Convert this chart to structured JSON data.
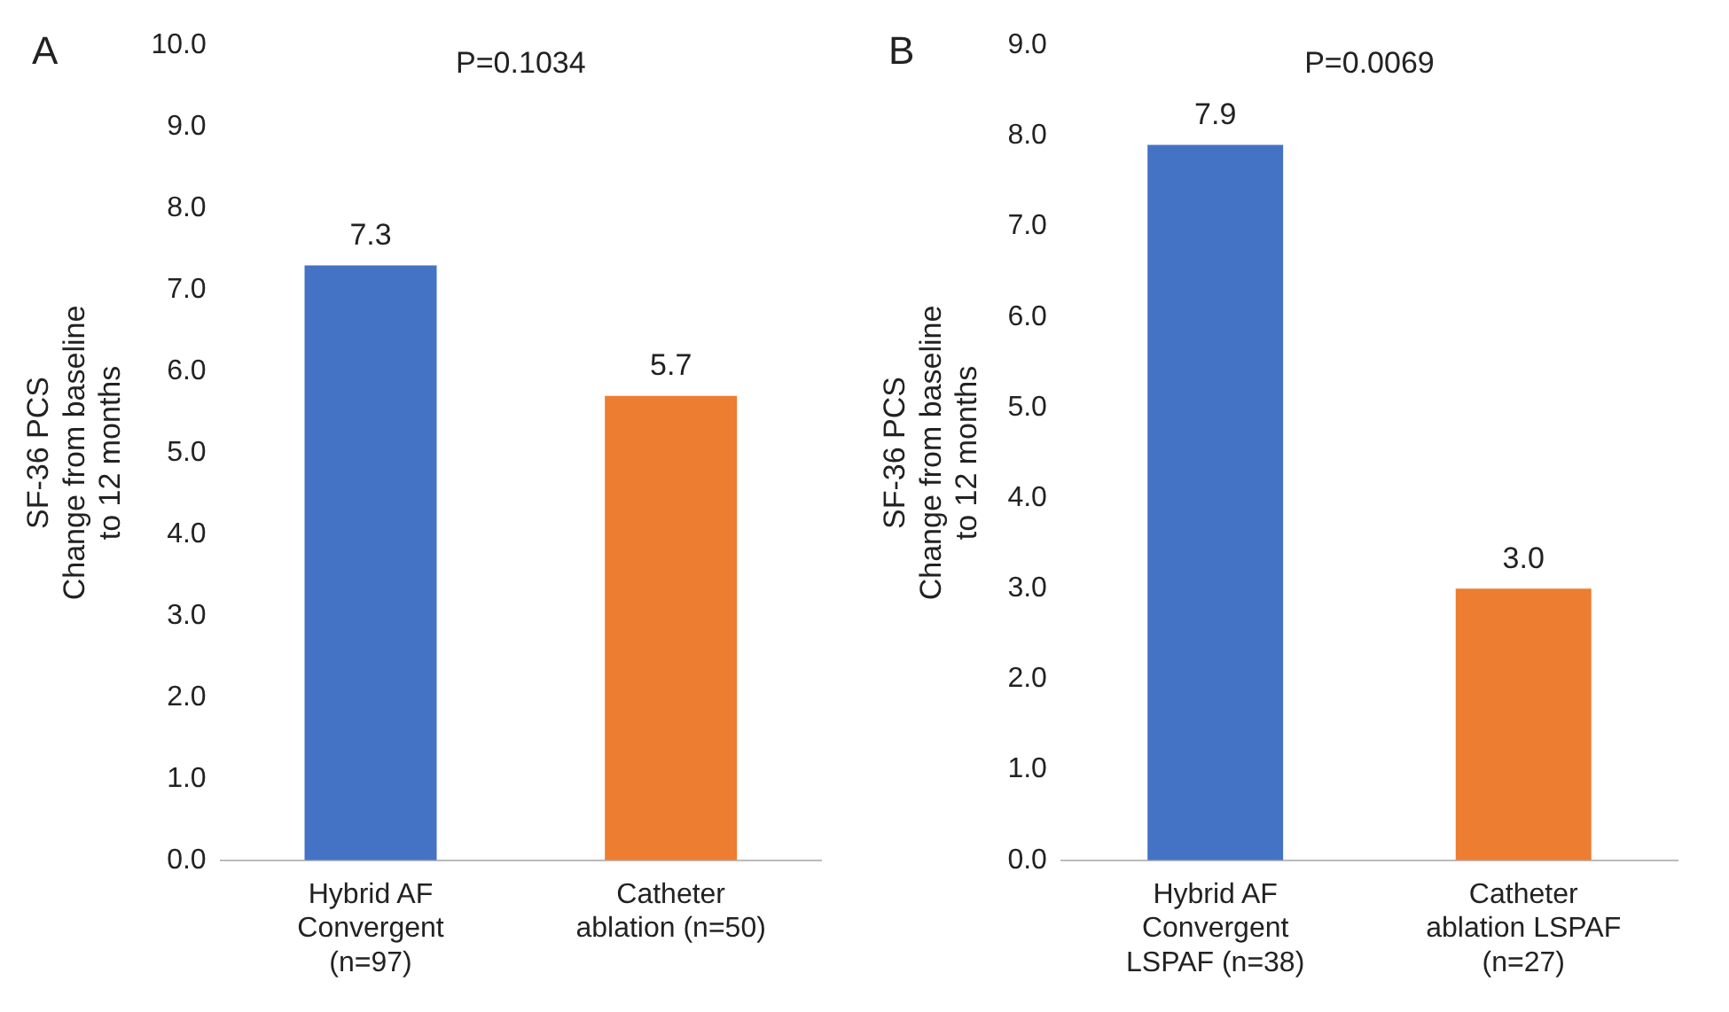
{
  "chart_data": [
    {
      "type": "bar",
      "title": "A",
      "ylabel": "SF-36 PCS\nChange from baseline\nto 12 months",
      "categories": [
        "Hybrid AF Convergent (n=97)",
        "Catheter ablation (n=50)"
      ],
      "values": [
        7.3,
        5.7
      ],
      "colors": [
        "#4472c4",
        "#ed7d31"
      ],
      "value_labels": [
        "7.3",
        "5.7"
      ],
      "ylim": [
        0,
        10
      ],
      "yticks": [
        {
          "value": 0,
          "label": "0.0"
        },
        {
          "value": 1,
          "label": "1.0"
        },
        {
          "value": 2,
          "label": "2.0"
        },
        {
          "value": 3,
          "label": "3.0"
        },
        {
          "value": 4,
          "label": "4.0"
        },
        {
          "value": 5,
          "label": "5.0"
        },
        {
          "value": 6,
          "label": "6.0"
        },
        {
          "value": 7,
          "label": "7.0"
        },
        {
          "value": 8,
          "label": "8.0"
        },
        {
          "value": 9,
          "label": "9.0"
        },
        {
          "value": 10,
          "label": "10.0"
        }
      ],
      "annotations": [
        "P=0.1034"
      ],
      "grid": false,
      "legend": false
    },
    {
      "type": "bar",
      "title": "B",
      "ylabel": "SF-36 PCS\nChange from baseline\nto 12 months",
      "categories": [
        "Hybrid AF Convergent LSPAF (n=38)",
        "Catheter ablation LSPAF (n=27)"
      ],
      "values": [
        7.9,
        3.0
      ],
      "colors": [
        "#4472c4",
        "#ed7d31"
      ],
      "value_labels": [
        "7.9",
        "3.0"
      ],
      "ylim": [
        0,
        9
      ],
      "yticks": [
        {
          "value": 0,
          "label": "0.0"
        },
        {
          "value": 1,
          "label": "1.0"
        },
        {
          "value": 2,
          "label": "2.0"
        },
        {
          "value": 3,
          "label": "3.0"
        },
        {
          "value": 4,
          "label": "4.0"
        },
        {
          "value": 5,
          "label": "5.0"
        },
        {
          "value": 6,
          "label": "6.0"
        },
        {
          "value": 7,
          "label": "7.0"
        },
        {
          "value": 8,
          "label": "8.0"
        },
        {
          "value": 9,
          "label": "9.0"
        }
      ],
      "annotations": [
        "P=0.0069"
      ],
      "grid": false,
      "legend": false
    }
  ]
}
